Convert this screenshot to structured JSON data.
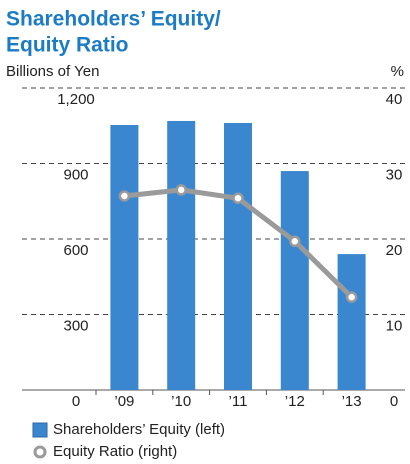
{
  "chart_data": {
    "type": "bar_line",
    "title": [
      "Shareholders’ Equity/",
      "Equity Ratio"
    ],
    "y_label": "Billions of Yen",
    "y2_label": "%",
    "categories": [
      "’09",
      "’10",
      "’11",
      "’12",
      "’13"
    ],
    "series": [
      {
        "name": "Shareholders’ Equity (left)",
        "color": "#3a87d0",
        "type": "bar",
        "values": [
          1053,
          1069,
          1061,
          870,
          540
        ]
      },
      {
        "name": "Equity Ratio (right)",
        "color": "#9a9a9a",
        "type": "line",
        "axis": "y2",
        "values": [
          25.7,
          26.5,
          25.4,
          19.7,
          12.3
        ]
      }
    ],
    "ylim": [
      0,
      1200
    ],
    "yticks": [
      0,
      300,
      600,
      900,
      {
        "value": 1200,
        "label": "1,200"
      }
    ],
    "y2lim": [
      0,
      40
    ],
    "y2ticks": [
      0,
      10,
      20,
      30,
      40
    ],
    "grid": true
  }
}
